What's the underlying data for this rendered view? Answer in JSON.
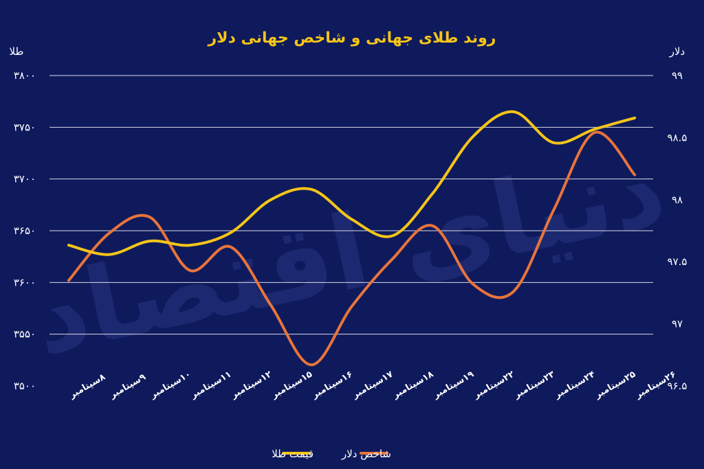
{
  "chart_data": {
    "type": "line",
    "title": "روند طلای جهانی و شاخص جهانی دلار",
    "watermark": "دنیای اقتصاد",
    "colors": {
      "background": "#0f1a5c",
      "grid": "#ffffff",
      "gold": "#f5c518",
      "dollar": "#e8743b"
    },
    "y_left": {
      "unit": "طلا",
      "ylim": [
        3500,
        3800
      ],
      "ticks": [
        3500,
        3550,
        3600,
        3650,
        3700,
        3750,
        3800
      ],
      "tick_labels": [
        "۳۵۰۰",
        "۳۵۵۰",
        "۳۶۰۰",
        "۳۶۵۰",
        "۳۷۰۰",
        "۳۷۵۰",
        "۳۸۰۰"
      ]
    },
    "y_right": {
      "unit": "دلار",
      "ylim": [
        96.5,
        99
      ],
      "ticks": [
        96.5,
        97,
        97.5,
        98,
        98.5,
        99
      ],
      "tick_labels": [
        "۹۶.۵",
        "۹۷",
        "۹۷.۵",
        "۹۸",
        "۹۸.۵",
        "۹۹"
      ]
    },
    "categories": [
      "۸سپتامبر",
      "۹سپتامبر",
      "۱۰سپتامبر",
      "۱۱سپتامبر",
      "۱۲سپتامبر",
      "۱۵سپتامبر",
      "۱۶سپتامبر",
      "۱۷سپتامبر",
      "۱۸سپتامبر",
      "۱۹سپتامبر",
      "۲۲سپتامبر",
      "۲۳سپتامبر",
      "۲۴سپتامبر",
      "۲۵سپتامبر",
      "۲۶سپتامبر"
    ],
    "series": [
      {
        "name": "قیمت طلا",
        "axis": "left",
        "values": [
          3636,
          3627,
          3640,
          3636,
          3648,
          3680,
          3690,
          3661,
          3645,
          3686,
          3741,
          3765,
          3735,
          3748,
          3759
        ]
      },
      {
        "name": "شاخص دلار",
        "axis": "right",
        "values": [
          97.35,
          97.73,
          97.86,
          97.43,
          97.62,
          97.15,
          96.67,
          97.14,
          97.52,
          97.79,
          97.32,
          97.26,
          97.92,
          98.54,
          98.2
        ]
      }
    ],
    "grid": true,
    "legend": "bottom-center"
  }
}
